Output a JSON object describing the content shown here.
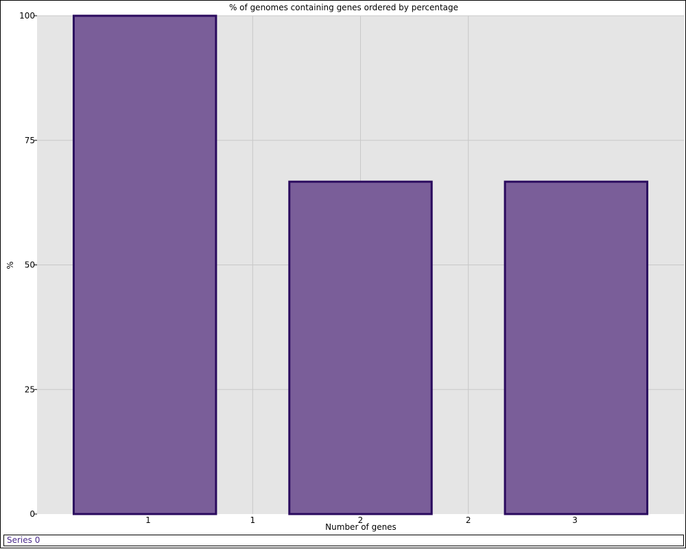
{
  "chart_data": {
    "type": "bar",
    "title": "% of genomes containing genes ordered by percentage",
    "xlabel": "Number of genes",
    "ylabel": "%",
    "categories": [
      "1",
      "2",
      "3"
    ],
    "x_values": [
      1,
      2,
      3
    ],
    "x_tick_labels": [
      "1",
      "1",
      "2",
      "2",
      "3"
    ],
    "y_ticks": [
      0,
      25,
      50,
      75,
      100
    ],
    "ylim": [
      0,
      100
    ],
    "series": [
      {
        "name": "Series 0",
        "values": [
          100,
          66.7,
          66.7
        ]
      }
    ],
    "grid": true,
    "legend_position": "bottom",
    "colors": {
      "bar_fill": "#7a5e99",
      "bar_stroke": "#2a0a5e",
      "plot_bg": "#e5e5e5",
      "grid": "#c8c8c8",
      "legend_text": "#4a2a8a"
    }
  }
}
